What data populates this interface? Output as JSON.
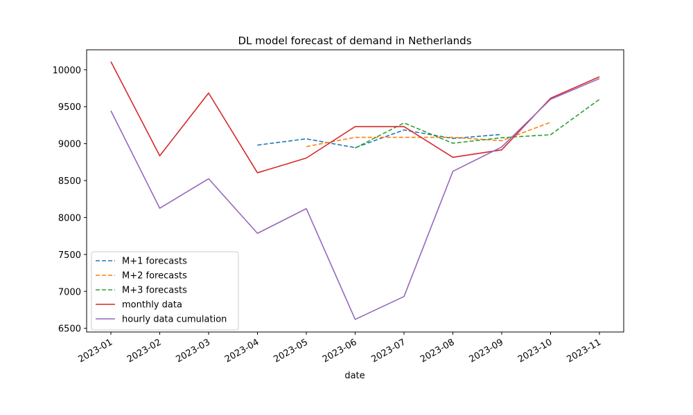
{
  "chart_data": {
    "type": "line",
    "title": "DL model forecast of demand in Netherlands",
    "xlabel": "date",
    "ylabel": "",
    "x_categories": [
      "2023-01",
      "2023-02",
      "2023-03",
      "2023-04",
      "2023-05",
      "2023-06",
      "2023-07",
      "2023-08",
      "2023-09",
      "2023-10",
      "2023-11"
    ],
    "ylim": [
      6450,
      10270
    ],
    "yticks": [
      6500,
      7000,
      7500,
      8000,
      8500,
      9000,
      9500,
      10000
    ],
    "grid": false,
    "legend_position": "lower-left",
    "series": [
      {
        "name": "M+1 forecasts",
        "color": "#1f77b4",
        "style": "dashed",
        "points": [
          [
            "2023-04",
            8980
          ],
          [
            "2023-05",
            9065
          ],
          [
            "2023-06",
            8945
          ],
          [
            "2023-07",
            9185
          ],
          [
            "2023-08",
            9070
          ],
          [
            "2023-09",
            9125
          ]
        ]
      },
      {
        "name": "M+2 forecasts",
        "color": "#ff7f0e",
        "style": "dashed",
        "points": [
          [
            "2023-05",
            8960
          ],
          [
            "2023-06",
            9085
          ],
          [
            "2023-07",
            9085
          ],
          [
            "2023-08",
            9085
          ],
          [
            "2023-09",
            9040
          ],
          [
            "2023-10",
            9290
          ]
        ]
      },
      {
        "name": "M+3 forecasts",
        "color": "#2ca02c",
        "style": "dashed",
        "points": [
          [
            "2023-06",
            8940
          ],
          [
            "2023-07",
            9280
          ],
          [
            "2023-08",
            9005
          ],
          [
            "2023-09",
            9080
          ],
          [
            "2023-10",
            9120
          ],
          [
            "2023-11",
            9600
          ]
        ]
      },
      {
        "name": "monthly data",
        "color": "#d62728",
        "style": "solid",
        "points": [
          [
            "2023-01",
            10110
          ],
          [
            "2023-02",
            8835
          ],
          [
            "2023-03",
            9685
          ],
          [
            "2023-04",
            8605
          ],
          [
            "2023-05",
            8805
          ],
          [
            "2023-06",
            9230
          ],
          [
            "2023-07",
            9230
          ],
          [
            "2023-08",
            8815
          ],
          [
            "2023-09",
            8915
          ],
          [
            "2023-10",
            9615
          ],
          [
            "2023-11",
            9905
          ]
        ]
      },
      {
        "name": "hourly data cumulation",
        "color": "#9467bd",
        "style": "solid",
        "points": [
          [
            "2023-01",
            9445
          ],
          [
            "2023-02",
            8125
          ],
          [
            "2023-03",
            8525
          ],
          [
            "2023-04",
            7785
          ],
          [
            "2023-05",
            8120
          ],
          [
            "2023-06",
            6620
          ],
          [
            "2023-07",
            6930
          ],
          [
            "2023-08",
            8625
          ],
          [
            "2023-09",
            8955
          ],
          [
            "2023-10",
            9600
          ],
          [
            "2023-11",
            9880
          ]
        ]
      }
    ]
  }
}
